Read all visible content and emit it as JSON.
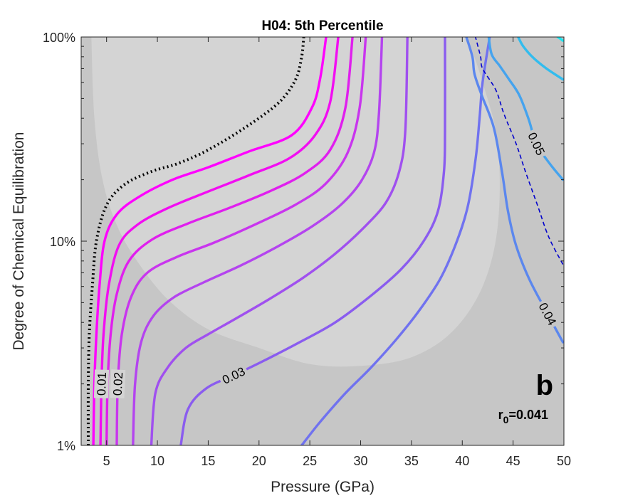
{
  "chart_data": {
    "type": "contour",
    "title": "H04: 5th Percentile",
    "xlabel": "Pressure (GPa)",
    "ylabel": "Degree of Chemical Equilibration",
    "xlim": [
      2.5,
      50
    ],
    "ylim": [
      1,
      100
    ],
    "yscale": "log",
    "x_ticks": [
      {
        "value": 5,
        "label": "5"
      },
      {
        "value": 10,
        "label": "10"
      },
      {
        "value": 15,
        "label": "15"
      },
      {
        "value": 20,
        "label": "20"
      },
      {
        "value": 25,
        "label": "25"
      },
      {
        "value": 30,
        "label": "30"
      },
      {
        "value": 35,
        "label": "35"
      },
      {
        "value": 40,
        "label": "40"
      },
      {
        "value": 45,
        "label": "45"
      },
      {
        "value": 50,
        "label": "50"
      }
    ],
    "y_ticks": [
      {
        "value": 1,
        "label": "1%"
      },
      {
        "value": 10,
        "label": "10%"
      },
      {
        "value": 100,
        "label": "100%"
      }
    ],
    "panel_letter": "b",
    "annotation": {
      "prefix": "r",
      "subscript": "0",
      "suffix": "=0.041"
    },
    "regions": [
      {
        "name": "outer-region",
        "color": "#c6c6c6"
      },
      {
        "name": "inner-region",
        "color": "#d4d4d4",
        "boundary": [
          [
            3.5,
            100
          ],
          [
            3.8,
            40
          ],
          [
            4.6,
            20
          ],
          [
            6,
            12
          ],
          [
            8,
            8
          ],
          [
            11,
            5.2
          ],
          [
            15,
            3.7
          ],
          [
            20,
            3
          ],
          [
            25,
            2.5
          ],
          [
            30,
            2.45
          ],
          [
            35,
            2.7
          ],
          [
            39,
            3.6
          ],
          [
            42,
            6
          ],
          [
            43.5,
            12
          ],
          [
            43.5,
            30
          ],
          [
            42,
            60
          ],
          [
            40.5,
            100
          ]
        ]
      }
    ],
    "contours": [
      {
        "name": "boundary-dotted",
        "style": "dotted",
        "color": "#000000",
        "points": [
          [
            3.2,
            1
          ],
          [
            3.2,
            2
          ],
          [
            3.3,
            3.5
          ],
          [
            3.6,
            6
          ],
          [
            4,
            10
          ],
          [
            5,
            15
          ],
          [
            6.8,
            19
          ],
          [
            9.5,
            22
          ],
          [
            12,
            24
          ],
          [
            15,
            28
          ],
          [
            19,
            37
          ],
          [
            22,
            48
          ],
          [
            23.6,
            62
          ],
          [
            24.2,
            80
          ],
          [
            24.4,
            100
          ]
        ]
      },
      {
        "name": "contour-0.01-a",
        "level": "",
        "color": "#ff00ff",
        "points": [
          [
            3.7,
            1
          ],
          [
            3.8,
            2
          ],
          [
            4,
            3.5
          ],
          [
            4.3,
            6
          ],
          [
            4.8,
            10
          ],
          [
            6,
            13.5
          ],
          [
            8.2,
            16.5
          ],
          [
            11.5,
            20
          ],
          [
            15,
            23
          ],
          [
            19,
            27.5
          ],
          [
            23.2,
            33
          ],
          [
            25.2,
            45
          ],
          [
            26,
            62
          ],
          [
            26.6,
            100
          ]
        ]
      },
      {
        "name": "contour-0.01-b",
        "level": "0.01",
        "color": "#f20df2",
        "points": [
          [
            4.4,
            1
          ],
          [
            4.5,
            2
          ],
          [
            4.7,
            3.5
          ],
          [
            5.2,
            6
          ],
          [
            6.2,
            9.5
          ],
          [
            8,
            12
          ],
          [
            11,
            14.5
          ],
          [
            15,
            17.5
          ],
          [
            19,
            21
          ],
          [
            23,
            25.5
          ],
          [
            25.5,
            33
          ],
          [
            27,
            48
          ],
          [
            27.8,
            100
          ]
        ]
      },
      {
        "name": "contour-0.02-a",
        "level": "",
        "color": "#e01fee",
        "points": [
          [
            5,
            1
          ],
          [
            5.1,
            2
          ],
          [
            5.4,
            3.5
          ],
          [
            6,
            5.5
          ],
          [
            7.2,
            8
          ],
          [
            9.5,
            10.2
          ],
          [
            13,
            12.2
          ],
          [
            17,
            14.5
          ],
          [
            21,
            17.5
          ],
          [
            24.5,
            21.5
          ],
          [
            27,
            28
          ],
          [
            28.5,
            45
          ],
          [
            29.2,
            100
          ]
        ]
      },
      {
        "name": "contour-0.02-b",
        "level": "0.02",
        "color": "#c935ee",
        "points": [
          [
            6,
            1
          ],
          [
            6.1,
            2
          ],
          [
            6.5,
            3.5
          ],
          [
            7.4,
            5.3
          ],
          [
            9,
            7
          ],
          [
            12,
            8.4
          ],
          [
            15.5,
            9.8
          ],
          [
            19.5,
            12
          ],
          [
            23.5,
            15
          ],
          [
            26.5,
            19
          ],
          [
            28.7,
            27
          ],
          [
            29.9,
            45
          ],
          [
            30.5,
            100
          ]
        ]
      },
      {
        "name": "contour-0.02-c",
        "level": "",
        "color": "#b444ef",
        "points": [
          [
            7.6,
            1
          ],
          [
            7.8,
            2
          ],
          [
            8.4,
            3.2
          ],
          [
            9.6,
            4.3
          ],
          [
            11.6,
            5.3
          ],
          [
            14.6,
            6.3
          ],
          [
            18.2,
            7.6
          ],
          [
            21.8,
            9.4
          ],
          [
            25.2,
            11.8
          ],
          [
            28,
            15
          ],
          [
            30,
            19.5
          ],
          [
            31.3,
            27
          ],
          [
            31.8,
            42
          ],
          [
            32.1,
            100
          ]
        ]
      },
      {
        "name": "contour-0.03-a",
        "level": "",
        "color": "#a050ef",
        "points": [
          [
            9.4,
            1
          ],
          [
            9.8,
            1.8
          ],
          [
            11,
            2.4
          ],
          [
            12.8,
            3
          ],
          [
            15,
            3.5
          ],
          [
            17.8,
            4.2
          ],
          [
            21,
            5.2
          ],
          [
            24.3,
            6.6
          ],
          [
            27.4,
            8.6
          ],
          [
            30.2,
            11.5
          ],
          [
            32.5,
            15.5
          ],
          [
            33.8,
            22
          ],
          [
            34.4,
            35
          ],
          [
            34.6,
            100
          ]
        ]
      },
      {
        "name": "contour-0.03-b",
        "level": "0.03",
        "color": "#8a5cef",
        "points": [
          [
            12.3,
            1
          ],
          [
            13,
            1.5
          ],
          [
            14.8,
            1.9
          ],
          [
            17.5,
            2.2
          ],
          [
            20.5,
            2.6
          ],
          [
            24,
            3.2
          ],
          [
            27.5,
            4
          ],
          [
            31,
            5.4
          ],
          [
            34,
            7.3
          ],
          [
            36.2,
            10
          ],
          [
            37.6,
            14
          ],
          [
            38.2,
            22
          ],
          [
            38.3,
            35
          ],
          [
            38.3,
            100
          ]
        ]
      },
      {
        "name": "contour-0.03-c",
        "level": "",
        "color": "#7072ef",
        "points": [
          [
            24.2,
            1
          ],
          [
            26,
            1.3
          ],
          [
            28.5,
            1.8
          ],
          [
            31,
            2.4
          ],
          [
            33.5,
            3.3
          ],
          [
            35.8,
            4.6
          ],
          [
            37.8,
            6.5
          ],
          [
            39.3,
            9.5
          ],
          [
            40.5,
            14.5
          ],
          [
            41.3,
            25
          ],
          [
            41.7,
            40
          ],
          [
            42,
            60
          ],
          [
            42.7,
            100
          ]
        ]
      },
      {
        "name": "contour-0.04-a",
        "level": "0.04",
        "color": "#5b87ee",
        "points": [
          [
            49.9,
            3.2
          ],
          [
            48.4,
            4.4
          ],
          [
            46.6,
            6.5
          ],
          [
            45.3,
            9.5
          ],
          [
            44.5,
            14
          ],
          [
            43.9,
            22
          ],
          [
            43.1,
            36
          ],
          [
            41.9,
            52
          ],
          [
            41.2,
            66
          ],
          [
            41,
            80
          ],
          [
            40.4,
            100
          ]
        ]
      },
      {
        "name": "contour-0.04-dashed",
        "level": "",
        "style": "dashed",
        "color": "#0000cc",
        "points": [
          [
            49.9,
            7.7
          ],
          [
            48.5,
            10.5
          ],
          [
            47.4,
            15
          ],
          [
            46.2,
            22
          ],
          [
            45.3,
            30
          ],
          [
            44.1,
            42
          ],
          [
            43.3,
            55
          ],
          [
            42,
            70
          ],
          [
            41.8,
            80
          ],
          [
            41.3,
            100
          ]
        ]
      },
      {
        "name": "contour-0.05-a",
        "level": "0.05",
        "color": "#45a3ee",
        "points": [
          [
            49.9,
            20
          ],
          [
            48.6,
            24
          ],
          [
            47.3,
            30
          ],
          [
            46.5,
            40
          ],
          [
            45.6,
            52
          ],
          [
            44.6,
            62
          ],
          [
            43.7,
            72
          ],
          [
            42.9,
            82
          ],
          [
            42.6,
            100
          ]
        ]
      },
      {
        "name": "contour-0.05-b",
        "level": "",
        "color": "#32bcee",
        "points": [
          [
            49.9,
            62
          ],
          [
            48.3,
            70
          ],
          [
            47,
            79
          ],
          [
            46,
            90
          ],
          [
            45.5,
            100
          ]
        ]
      },
      {
        "name": "contour-0.05-c",
        "level": "",
        "color": "#1ee5f0",
        "points": [
          [
            49.9,
            96
          ],
          [
            49.4,
            100
          ]
        ]
      }
    ]
  }
}
